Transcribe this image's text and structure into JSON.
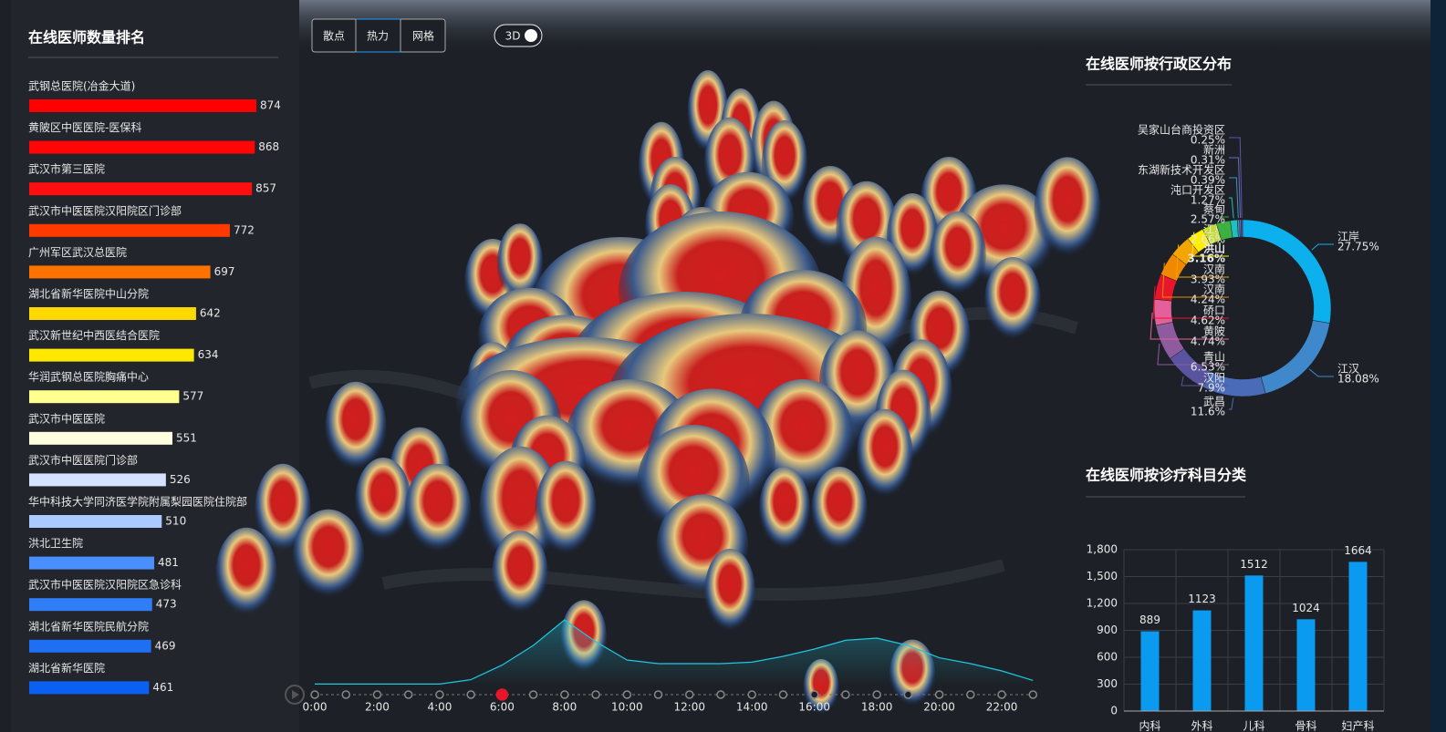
{
  "toolbar": {
    "buttons": [
      "散点",
      "热力",
      "网格"
    ],
    "toggle": "3D"
  },
  "chart_data": [
    {
      "type": "hbar",
      "title": "在线医师数量排名",
      "categories": [
        "武钢总医院(冶金大道)",
        "黄陂区中医医院-医保科",
        "武汉市第三医院",
        "武汉市中医医院汉阳院区门诊部",
        "广州军区武汉总医院",
        "湖北省新华医院中山分院",
        "武汉新世纪中西医结合医院",
        "华润武钢总医院胸痛中心",
        "武汉市中医医院",
        "武汉市中医医院门诊部",
        "华中科技大学同济医学院附属梨园医院住院部",
        "洪北卫生院",
        "武汉市中医医院汉阳院区急诊科",
        "湖北省新华医院民航分院",
        "湖北省新华医院"
      ],
      "values": [
        874,
        868,
        857,
        772,
        697,
        642,
        634,
        577,
        551,
        526,
        510,
        481,
        473,
        469,
        461
      ],
      "colors": [
        "#ff0000",
        "#ff0505",
        "#ff0f0f",
        "#ff3a00",
        "#ff7200",
        "#ffd800",
        "#ffe800",
        "#ffff90",
        "#ffffe0",
        "#d4e2ff",
        "#a9c9ff",
        "#4b8fff",
        "#2f7ef8",
        "#1f6ff5",
        "#0a60f0"
      ]
    },
    {
      "type": "donut",
      "title": "在线医师按行政区分布",
      "categories": [
        "江岸",
        "江汉",
        "武昌",
        "汉阳",
        "青山",
        "黄陂",
        "硚口",
        "汉南",
        "汉南",
        "洪山",
        "江夏",
        "蔡甸",
        "沌口开发区",
        "东湖新技术开发区",
        "新洲",
        "吴家山台商投资区"
      ],
      "values": [
        27.75,
        18.08,
        11.6,
        7.9,
        6.53,
        4.74,
        4.62,
        4.24,
        3.93,
        3.16,
        2.66,
        2.57,
        1.27,
        0.39,
        0.31,
        0.25
      ],
      "value_labels": [
        "27.75%",
        "18.08%",
        "11.6%",
        "7.9%",
        "6.53%",
        "4.74%",
        "4.62%",
        "4.24%",
        "3.93%",
        "3.16%",
        "2.66%",
        "2.57%",
        "1.27%",
        "0.39%",
        "0.31%",
        "0.25%"
      ],
      "colors": [
        "#0cb0ec",
        "#3f88cc",
        "#4a6cb8",
        "#5a54a0",
        "#8e5c9e",
        "#e4609a",
        "#e8162a",
        "#f08800",
        "#f5a500",
        "#ffee00",
        "#c4dc30",
        "#3cb040",
        "#20c0c0",
        "#4090c0",
        "#6070c0",
        "#6552a4"
      ]
    },
    {
      "type": "bar",
      "title": "在线医师按诊疗科目分类",
      "categories": [
        "内科",
        "外科",
        "儿科",
        "骨科",
        "妇产科"
      ],
      "values": [
        889,
        1123,
        1512,
        1024,
        1664
      ],
      "color": "#0a9af0",
      "ylim": [
        0,
        1800
      ],
      "yticks": [
        0,
        300,
        600,
        900,
        {
          "value": 1200,
          "label": "1,200"
        },
        {
          "value": 1500,
          "label": "1,500"
        },
        {
          "value": 1800,
          "label": "1,800"
        }
      ],
      "grid": true
    },
    {
      "type": "line",
      "x": [
        "0:00",
        null,
        "2:00",
        null,
        "4:00",
        null,
        "6:00",
        null,
        "8:00",
        null,
        "10:00",
        null,
        "12:00",
        null,
        "14:00",
        null,
        "16:00",
        null,
        "18:00",
        null,
        "20:00",
        null,
        "22:00",
        null
      ],
      "values": [
        2,
        2,
        2,
        2,
        2,
        8,
        28,
        55,
        90,
        60,
        35,
        30,
        30,
        30,
        32,
        40,
        50,
        62,
        65,
        55,
        38,
        30,
        20,
        7
      ],
      "ylim": [
        0,
        100
      ],
      "color": "#1ec8e0",
      "current": "6:00"
    }
  ]
}
